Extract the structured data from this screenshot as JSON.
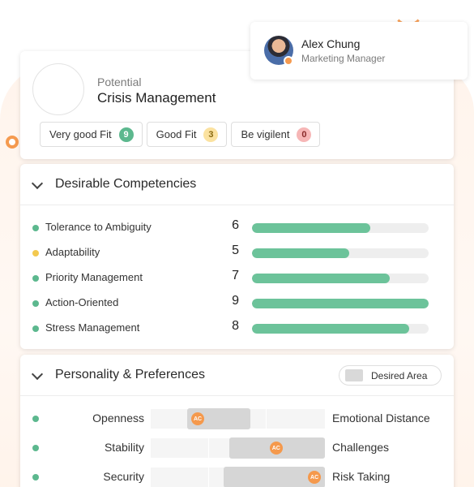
{
  "user": {
    "name": "Alex Chung",
    "role": "Marketing Manager"
  },
  "potential": {
    "label": "Potential",
    "title": "Crisis Management",
    "fits": [
      {
        "label": "Very good Fit",
        "count": "9",
        "bg": "#5cb88e",
        "fg": "#ffffff"
      },
      {
        "label": "Good Fit",
        "count": "3",
        "bg": "#fbe2a0",
        "fg": "#8a6a10"
      },
      {
        "label": "Be vigilent",
        "count": "0",
        "bg": "#f6b6b6",
        "fg": "#8a2a2a"
      }
    ]
  },
  "competencies": {
    "title": "Desirable Competencies",
    "max_score": 10,
    "items": [
      {
        "name": "Tolerance to Ambiguity",
        "score": "6",
        "fill": 0.67,
        "dot_color": "#5cb88e"
      },
      {
        "name": "Adaptability",
        "score": "5",
        "fill": 0.55,
        "dot_color": "#f3c94f"
      },
      {
        "name": "Priority Management",
        "score": "7",
        "fill": 0.78,
        "dot_color": "#5cb88e"
      },
      {
        "name": "Action-Oriented",
        "score": "9",
        "fill": 1.0,
        "dot_color": "#5cb88e"
      },
      {
        "name": "Stress Management",
        "score": "8",
        "fill": 0.89,
        "dot_color": "#5cb88e"
      }
    ]
  },
  "personality": {
    "title": "Personality & Preferences",
    "legend_label": "Desired Area",
    "marker_label": "AC",
    "items": [
      {
        "left": "Openness",
        "right": "Emotional Distance",
        "desired_start": 0.21,
        "desired_end": 0.57,
        "marker": 0.27,
        "dot_color": "#5cb88e"
      },
      {
        "left": "Stability",
        "right": "Challenges",
        "desired_start": 0.45,
        "desired_end": 1.0,
        "marker": 0.72,
        "dot_color": "#5cb88e"
      },
      {
        "left": "Security",
        "right": "Risk Taking",
        "desired_start": 0.42,
        "desired_end": 1.0,
        "marker": 0.94,
        "dot_color": "#5cb88e"
      }
    ]
  }
}
